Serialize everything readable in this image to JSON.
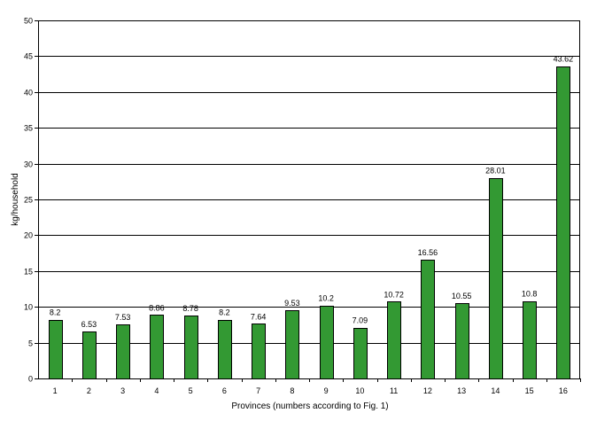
{
  "chart_data": {
    "type": "bar",
    "title": "",
    "xlabel": "Provinces (numbers according to Fig. 1)",
    "ylabel": "kg/household",
    "categories": [
      "1",
      "2",
      "3",
      "4",
      "5",
      "6",
      "7",
      "8",
      "9",
      "10",
      "11",
      "12",
      "13",
      "14",
      "15",
      "16"
    ],
    "values": [
      8.2,
      6.53,
      7.53,
      8.86,
      8.78,
      8.2,
      7.64,
      9.53,
      10.2,
      7.09,
      10.72,
      16.56,
      10.55,
      28.01,
      10.8,
      43.62
    ],
    "data_labels": [
      "8.2",
      "6.53",
      "7.53",
      "8.86",
      "8.78",
      "8.2",
      "7.64",
      "9.53",
      "10.2",
      "7.09",
      "10.72",
      "16.56",
      "10.55",
      "28.01",
      "10.8",
      "43.62"
    ],
    "ylim": [
      0,
      50
    ],
    "yticks": [
      "0",
      "5",
      "10",
      "15",
      "20",
      "25",
      "30",
      "35",
      "40",
      "45",
      "50"
    ],
    "grid": true,
    "legend": "none",
    "bar_color": "#339933"
  }
}
